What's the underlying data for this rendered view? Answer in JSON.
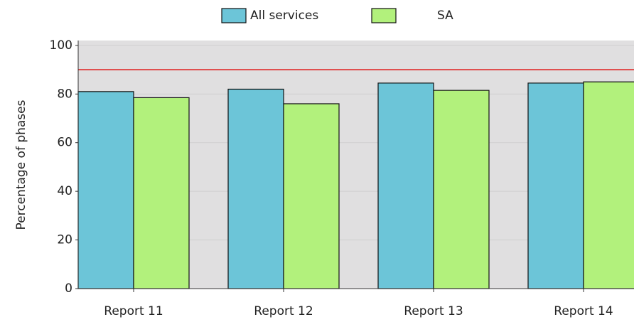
{
  "chart_data": {
    "type": "bar",
    "y_label": "Percentage of phases",
    "categories": [
      "Report 11",
      "Report 12",
      "Report 13",
      "Report 14"
    ],
    "series": [
      {
        "name": "All services",
        "color": "#6cc5d8",
        "values": [
          81,
          82,
          84.5,
          84.5
        ]
      },
      {
        "name": "SA",
        "color": "#b2f17c",
        "values": [
          78.5,
          76,
          81.5,
          85
        ]
      }
    ],
    "ylim": [
      0,
      102
    ],
    "yticks": [
      0,
      20,
      40,
      60,
      80,
      100
    ],
    "grid": true,
    "reference_line": {
      "value": 90,
      "color": "#e02020"
    },
    "legend": "top"
  }
}
